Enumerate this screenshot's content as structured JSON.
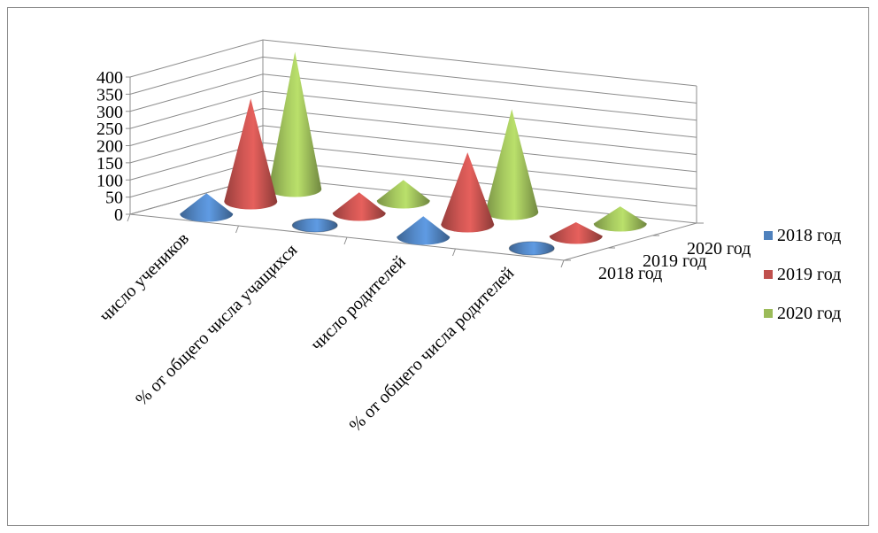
{
  "chart_data": {
    "type": "bar",
    "subtype": "3d-cone",
    "categories": [
      "число учеников",
      "% от общего числа учащихся",
      "число родителей",
      "% от общего числа родителей"
    ],
    "series": [
      {
        "name": "2018 год",
        "color": "#4F81BD",
        "values": [
          60,
          0,
          60,
          0
        ]
      },
      {
        "name": "2019 год",
        "color": "#C0504D",
        "values": [
          300,
          60,
          210,
          40
        ]
      },
      {
        "name": "2020 год",
        "color": "#9BBB59",
        "values": [
          400,
          60,
          300,
          50
        ]
      }
    ],
    "y_ticks": [
      "0",
      "50",
      "100",
      "150",
      "200",
      "250",
      "300",
      "350",
      "400"
    ],
    "ylim": [
      0,
      400
    ],
    "depth_labels": [
      "2018 год",
      "2019 год",
      "2020 год"
    ],
    "legend_position": "right",
    "grid": true
  }
}
